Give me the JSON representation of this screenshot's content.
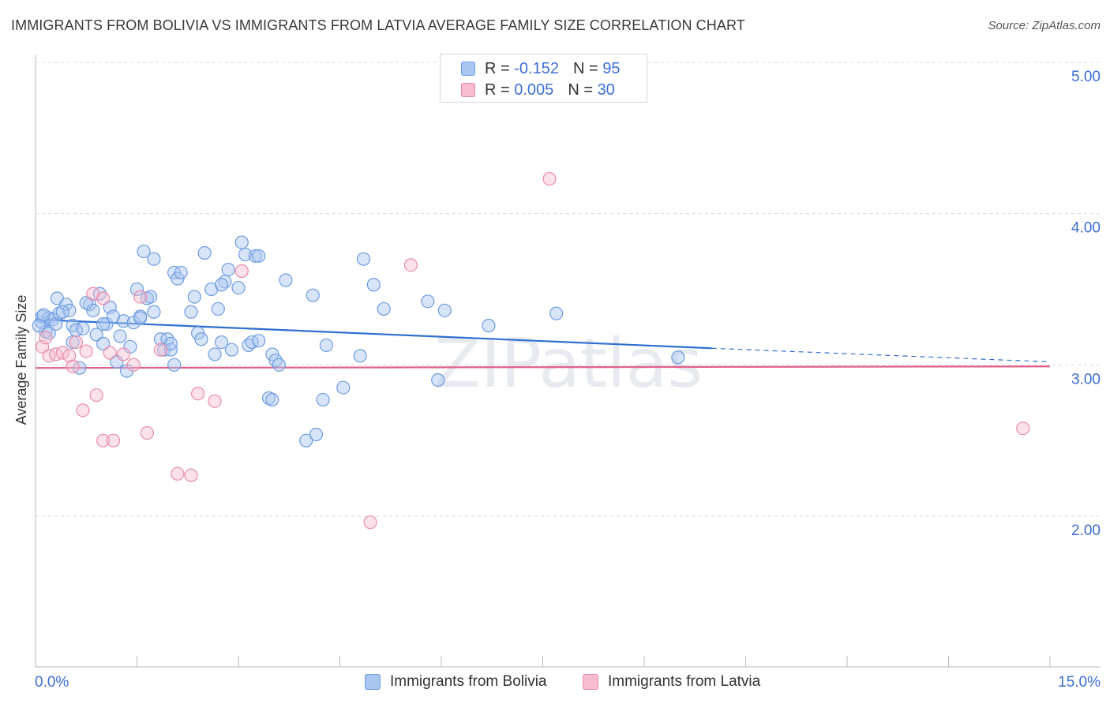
{
  "title": "IMMIGRANTS FROM BOLIVIA VS IMMIGRANTS FROM LATVIA AVERAGE FAMILY SIZE CORRELATION CHART",
  "source": "Source: ZipAtlas.com",
  "watermark": "ZIPatlas",
  "legend": {
    "rows": [
      {
        "r_label": "R =",
        "r_value": "-0.152",
        "n_label": "N =",
        "n_value": "95",
        "color": "#a8c6f0",
        "border": "#6d9be0"
      },
      {
        "r_label": "R =",
        "r_value": "0.005",
        "n_label": "N =",
        "n_value": "30",
        "color": "#f7bcd0",
        "border": "#e88aab"
      }
    ]
  },
  "chart_data": {
    "type": "scatter",
    "ylabel": "Average Family Size",
    "xlim": [
      0.0,
      15.0
    ],
    "ylim": [
      1.0,
      5.2
    ],
    "x_tick_labels": [
      "0.0%",
      "15.0%"
    ],
    "y_ticks": [
      2.0,
      3.0,
      4.0,
      5.0
    ],
    "y_tick_labels": [
      "2.00",
      "3.00",
      "4.00",
      "5.00"
    ],
    "grid": true,
    "series": [
      {
        "name": "Immigrants from Bolivia",
        "color": "#6d9be0",
        "fill": "#a8c6f0",
        "trend": {
          "x0": 0.0,
          "y0": 3.3,
          "x1": 10.0,
          "y1": 3.11,
          "dashed_to_x": 15.0,
          "dashed_to_y": 3.02,
          "color": "#2f6fd0"
        },
        "points": [
          [
            0.1,
            3.28
          ],
          [
            0.15,
            3.22
          ],
          [
            0.1,
            3.32
          ],
          [
            0.2,
            3.31
          ],
          [
            0.25,
            3.3
          ],
          [
            0.3,
            3.27
          ],
          [
            0.35,
            3.34
          ],
          [
            0.32,
            3.44
          ],
          [
            0.45,
            3.4
          ],
          [
            0.5,
            3.36
          ],
          [
            0.55,
            3.26
          ],
          [
            0.6,
            3.23
          ],
          [
            0.55,
            3.15
          ],
          [
            0.65,
            2.98
          ],
          [
            0.7,
            3.24
          ],
          [
            0.8,
            3.4
          ],
          [
            0.85,
            3.36
          ],
          [
            0.9,
            3.2
          ],
          [
            0.95,
            3.47
          ],
          [
            1.0,
            3.14
          ],
          [
            1.05,
            3.27
          ],
          [
            1.1,
            3.38
          ],
          [
            1.15,
            3.32
          ],
          [
            1.2,
            3.02
          ],
          [
            1.25,
            3.19
          ],
          [
            1.3,
            3.29
          ],
          [
            1.35,
            2.96
          ],
          [
            1.4,
            3.12
          ],
          [
            1.45,
            3.28
          ],
          [
            1.5,
            3.5
          ],
          [
            1.55,
            3.32
          ],
          [
            1.6,
            3.75
          ],
          [
            1.65,
            3.44
          ],
          [
            1.75,
            3.35
          ],
          [
            1.75,
            3.7
          ],
          [
            1.85,
            3.17
          ],
          [
            1.9,
            3.1
          ],
          [
            1.95,
            3.17
          ],
          [
            2.0,
            3.1
          ],
          [
            2.05,
            3.0
          ],
          [
            2.05,
            3.61
          ],
          [
            2.1,
            3.57
          ],
          [
            2.15,
            3.61
          ],
          [
            2.3,
            3.35
          ],
          [
            2.35,
            3.45
          ],
          [
            2.4,
            3.21
          ],
          [
            2.45,
            3.17
          ],
          [
            2.5,
            3.74
          ],
          [
            2.6,
            3.5
          ],
          [
            2.65,
            3.07
          ],
          [
            2.7,
            3.37
          ],
          [
            2.75,
            3.15
          ],
          [
            2.8,
            3.55
          ],
          [
            2.85,
            3.63
          ],
          [
            2.9,
            3.1
          ],
          [
            3.0,
            3.51
          ],
          [
            3.05,
            3.81
          ],
          [
            3.1,
            3.73
          ],
          [
            3.15,
            3.13
          ],
          [
            3.2,
            3.15
          ],
          [
            3.25,
            3.72
          ],
          [
            3.3,
            3.16
          ],
          [
            3.45,
            2.78
          ],
          [
            3.5,
            3.07
          ],
          [
            3.5,
            2.77
          ],
          [
            3.55,
            3.03
          ],
          [
            3.6,
            3.0
          ],
          [
            3.7,
            3.56
          ],
          [
            4.0,
            2.5
          ],
          [
            4.1,
            3.46
          ],
          [
            4.15,
            2.54
          ],
          [
            4.25,
            2.77
          ],
          [
            4.3,
            3.13
          ],
          [
            4.55,
            2.85
          ],
          [
            4.8,
            3.06
          ],
          [
            4.85,
            3.7
          ],
          [
            5.0,
            3.53
          ],
          [
            5.15,
            3.37
          ],
          [
            5.8,
            3.42
          ],
          [
            5.95,
            2.9
          ],
          [
            6.05,
            3.36
          ],
          [
            6.7,
            3.26
          ],
          [
            7.7,
            3.34
          ],
          [
            9.5,
            3.05
          ],
          [
            0.05,
            3.26
          ],
          [
            0.12,
            3.33
          ],
          [
            0.2,
            3.21
          ],
          [
            0.4,
            3.35
          ],
          [
            0.75,
            3.41
          ],
          [
            1.0,
            3.27
          ],
          [
            1.55,
            3.31
          ],
          [
            1.7,
            3.45
          ],
          [
            2.0,
            3.14
          ],
          [
            2.75,
            3.53
          ],
          [
            3.3,
            3.72
          ]
        ]
      },
      {
        "name": "Immigrants from Latvia",
        "color": "#e88aab",
        "fill": "#f7bcd0",
        "trend": {
          "x0": 0.0,
          "y0": 2.98,
          "x1": 15.0,
          "y1": 2.99,
          "color": "#e0608a"
        },
        "points": [
          [
            0.1,
            3.12
          ],
          [
            0.2,
            3.06
          ],
          [
            0.3,
            3.07
          ],
          [
            0.4,
            3.08
          ],
          [
            0.5,
            3.06
          ],
          [
            0.55,
            2.99
          ],
          [
            0.6,
            3.15
          ],
          [
            0.7,
            2.7
          ],
          [
            0.75,
            3.09
          ],
          [
            0.85,
            3.47
          ],
          [
            0.9,
            2.8
          ],
          [
            1.0,
            2.5
          ],
          [
            1.1,
            3.08
          ],
          [
            1.15,
            2.5
          ],
          [
            1.3,
            3.07
          ],
          [
            1.45,
            3.0
          ],
          [
            1.55,
            3.45
          ],
          [
            1.65,
            2.55
          ],
          [
            1.85,
            3.1
          ],
          [
            2.1,
            2.28
          ],
          [
            2.3,
            2.27
          ],
          [
            2.4,
            2.81
          ],
          [
            2.65,
            2.76
          ],
          [
            3.05,
            3.62
          ],
          [
            4.95,
            1.96
          ],
          [
            5.55,
            3.66
          ],
          [
            7.6,
            4.23
          ],
          [
            14.6,
            2.58
          ],
          [
            0.15,
            3.18
          ],
          [
            1.0,
            3.44
          ]
        ]
      }
    ]
  },
  "bottom_legend": [
    {
      "label": "Immigrants from Bolivia",
      "color": "#a8c6f0",
      "border": "#6d9be0"
    },
    {
      "label": "Immigrants from Latvia",
      "color": "#f7bcd0",
      "border": "#e88aab"
    }
  ]
}
